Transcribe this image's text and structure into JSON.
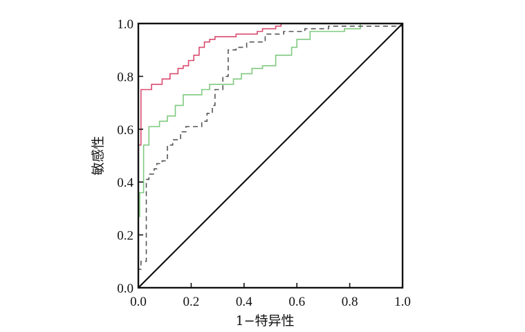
{
  "chart_data": {
    "type": "line",
    "xlabel": "1−特异性",
    "ylabel": "敏感性",
    "xlim": [
      0,
      1
    ],
    "ylim": [
      0,
      1
    ],
    "x_ticks": [
      "0.0",
      "0.2",
      "0.4",
      "0.6",
      "0.8",
      "1.0"
    ],
    "y_ticks": [
      "0.0",
      "0.2",
      "0.4",
      "0.6",
      "0.8",
      "1.0"
    ],
    "grid": false,
    "legend": "none",
    "series": [
      {
        "color": "#d94a6e",
        "dash": "solid",
        "x": [
          0,
          0,
          0.01,
          0.01,
          0.05,
          0.05,
          0.09,
          0.09,
          0.12,
          0.12,
          0.15,
          0.15,
          0.17,
          0.17,
          0.19,
          0.19,
          0.21,
          0.21,
          0.23,
          0.23,
          0.25,
          0.25,
          0.27,
          0.27,
          0.29,
          0.29,
          0.31,
          0.31,
          0.37,
          0.37,
          0.45,
          0.45,
          0.47,
          0.47,
          0.52,
          0.52,
          0.54,
          0.54,
          1.0
        ],
        "y": [
          0,
          0.54,
          0.54,
          0.75,
          0.75,
          0.77,
          0.77,
          0.79,
          0.79,
          0.81,
          0.81,
          0.83,
          0.83,
          0.84,
          0.84,
          0.86,
          0.86,
          0.88,
          0.88,
          0.91,
          0.91,
          0.93,
          0.93,
          0.94,
          0.94,
          0.95,
          0.95,
          0.95,
          0.95,
          0.96,
          0.96,
          0.97,
          0.97,
          0.98,
          0.98,
          0.99,
          0.99,
          1.0,
          1.0
        ]
      },
      {
        "color": "#7fc97f",
        "dash": "solid",
        "x": [
          0,
          0,
          0.005,
          0.005,
          0.02,
          0.02,
          0.04,
          0.04,
          0.08,
          0.08,
          0.11,
          0.11,
          0.14,
          0.14,
          0.17,
          0.17,
          0.24,
          0.24,
          0.27,
          0.27,
          0.29,
          0.29,
          0.36,
          0.36,
          0.39,
          0.39,
          0.43,
          0.43,
          0.47,
          0.47,
          0.52,
          0.52,
          0.58,
          0.58,
          0.6,
          0.6,
          0.65,
          0.65,
          0.78,
          0.78,
          0.84,
          0.84,
          1.0
        ],
        "y": [
          0,
          0.27,
          0.27,
          0.36,
          0.36,
          0.54,
          0.54,
          0.61,
          0.61,
          0.63,
          0.63,
          0.65,
          0.65,
          0.69,
          0.69,
          0.73,
          0.73,
          0.75,
          0.75,
          0.77,
          0.77,
          0.77,
          0.77,
          0.79,
          0.79,
          0.81,
          0.81,
          0.83,
          0.83,
          0.84,
          0.84,
          0.88,
          0.88,
          0.91,
          0.91,
          0.94,
          0.94,
          0.97,
          0.97,
          0.98,
          0.98,
          1.0,
          1.0
        ]
      },
      {
        "color": "#555555",
        "dash": "dashed",
        "x": [
          0,
          0,
          0.01,
          0.01,
          0.03,
          0.03,
          0.04,
          0.04,
          0.06,
          0.06,
          0.07,
          0.07,
          0.09,
          0.09,
          0.11,
          0.11,
          0.13,
          0.13,
          0.16,
          0.16,
          0.18,
          0.18,
          0.24,
          0.24,
          0.26,
          0.26,
          0.28,
          0.28,
          0.29,
          0.29,
          0.32,
          0.32,
          0.34,
          0.34,
          0.37,
          0.37,
          0.41,
          0.41,
          0.48,
          0.48,
          0.55,
          0.55,
          0.63,
          0.63,
          0.72,
          0.72,
          1.0
        ],
        "y": [
          0,
          0.07,
          0.07,
          0.1,
          0.1,
          0.41,
          0.41,
          0.43,
          0.43,
          0.45,
          0.45,
          0.47,
          0.47,
          0.48,
          0.48,
          0.54,
          0.54,
          0.56,
          0.56,
          0.59,
          0.59,
          0.61,
          0.61,
          0.63,
          0.63,
          0.66,
          0.66,
          0.69,
          0.69,
          0.75,
          0.75,
          0.8,
          0.8,
          0.9,
          0.9,
          0.91,
          0.91,
          0.93,
          0.93,
          0.96,
          0.96,
          0.97,
          0.97,
          0.98,
          0.98,
          0.99,
          0.99
        ]
      },
      {
        "color": "#111111",
        "dash": "solid",
        "x": [
          0,
          1
        ],
        "y": [
          0,
          1
        ]
      }
    ]
  }
}
